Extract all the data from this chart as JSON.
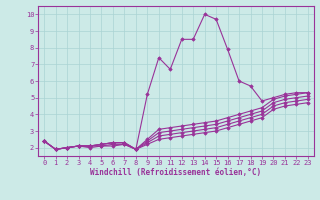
{
  "xlabel": "Windchill (Refroidissement éolien,°C)",
  "bg_color": "#cceae7",
  "line_color": "#993399",
  "grid_color": "#aad4d4",
  "spine_color": "#993399",
  "xlim": [
    -0.5,
    23.5
  ],
  "ylim": [
    1.5,
    10.5
  ],
  "xticks": [
    0,
    1,
    2,
    3,
    4,
    5,
    6,
    7,
    8,
    9,
    10,
    11,
    12,
    13,
    14,
    15,
    16,
    17,
    18,
    19,
    20,
    21,
    22,
    23
  ],
  "yticks": [
    2,
    3,
    4,
    5,
    6,
    7,
    8,
    9,
    10
  ],
  "lines": [
    {
      "x": [
        0,
        1,
        2,
        3,
        4,
        5,
        6,
        7,
        8,
        9,
        10,
        11,
        12,
        13,
        14,
        15,
        16,
        17,
        18,
        19,
        20,
        21,
        22,
        23
      ],
      "y": [
        2.4,
        1.9,
        2.0,
        2.1,
        2.1,
        2.2,
        2.3,
        2.3,
        1.9,
        5.2,
        7.4,
        6.7,
        8.5,
        8.5,
        10.0,
        9.7,
        7.9,
        6.0,
        5.7,
        4.8,
        5.0,
        5.2,
        5.3,
        5.3
      ]
    },
    {
      "x": [
        0,
        1,
        2,
        3,
        4,
        5,
        6,
        7,
        8,
        9,
        10,
        11,
        12,
        13,
        14,
        15,
        16,
        17,
        18,
        19,
        20,
        21,
        22,
        23
      ],
      "y": [
        2.4,
        1.9,
        2.0,
        2.1,
        2.1,
        2.2,
        2.3,
        2.3,
        1.9,
        2.5,
        3.1,
        3.2,
        3.3,
        3.4,
        3.5,
        3.6,
        3.8,
        4.0,
        4.2,
        4.4,
        4.9,
        5.1,
        5.2,
        5.3
      ]
    },
    {
      "x": [
        0,
        1,
        2,
        3,
        4,
        5,
        6,
        7,
        8,
        9,
        10,
        11,
        12,
        13,
        14,
        15,
        16,
        17,
        18,
        19,
        20,
        21,
        22,
        23
      ],
      "y": [
        2.4,
        1.9,
        2.0,
        2.1,
        2.1,
        2.2,
        2.3,
        2.3,
        1.9,
        2.4,
        2.9,
        3.0,
        3.1,
        3.2,
        3.3,
        3.4,
        3.6,
        3.8,
        4.0,
        4.2,
        4.7,
        4.9,
        5.0,
        5.1
      ]
    },
    {
      "x": [
        0,
        1,
        2,
        3,
        4,
        5,
        6,
        7,
        8,
        9,
        10,
        11,
        12,
        13,
        14,
        15,
        16,
        17,
        18,
        19,
        20,
        21,
        22,
        23
      ],
      "y": [
        2.4,
        1.9,
        2.0,
        2.1,
        2.1,
        2.1,
        2.2,
        2.2,
        1.9,
        2.3,
        2.7,
        2.8,
        2.9,
        3.0,
        3.1,
        3.2,
        3.4,
        3.6,
        3.8,
        4.0,
        4.5,
        4.7,
        4.8,
        4.9
      ]
    },
    {
      "x": [
        0,
        1,
        2,
        3,
        4,
        5,
        6,
        7,
        8,
        9,
        10,
        11,
        12,
        13,
        14,
        15,
        16,
        17,
        18,
        19,
        20,
        21,
        22,
        23
      ],
      "y": [
        2.4,
        1.9,
        2.0,
        2.1,
        2.0,
        2.1,
        2.1,
        2.2,
        1.9,
        2.2,
        2.5,
        2.6,
        2.7,
        2.8,
        2.9,
        3.0,
        3.2,
        3.4,
        3.6,
        3.8,
        4.3,
        4.5,
        4.6,
        4.7
      ]
    }
  ],
  "marker": "D",
  "markersize": 1.8,
  "linewidth": 0.8,
  "xlabel_fontsize": 5.5,
  "tick_fontsize": 5.0
}
